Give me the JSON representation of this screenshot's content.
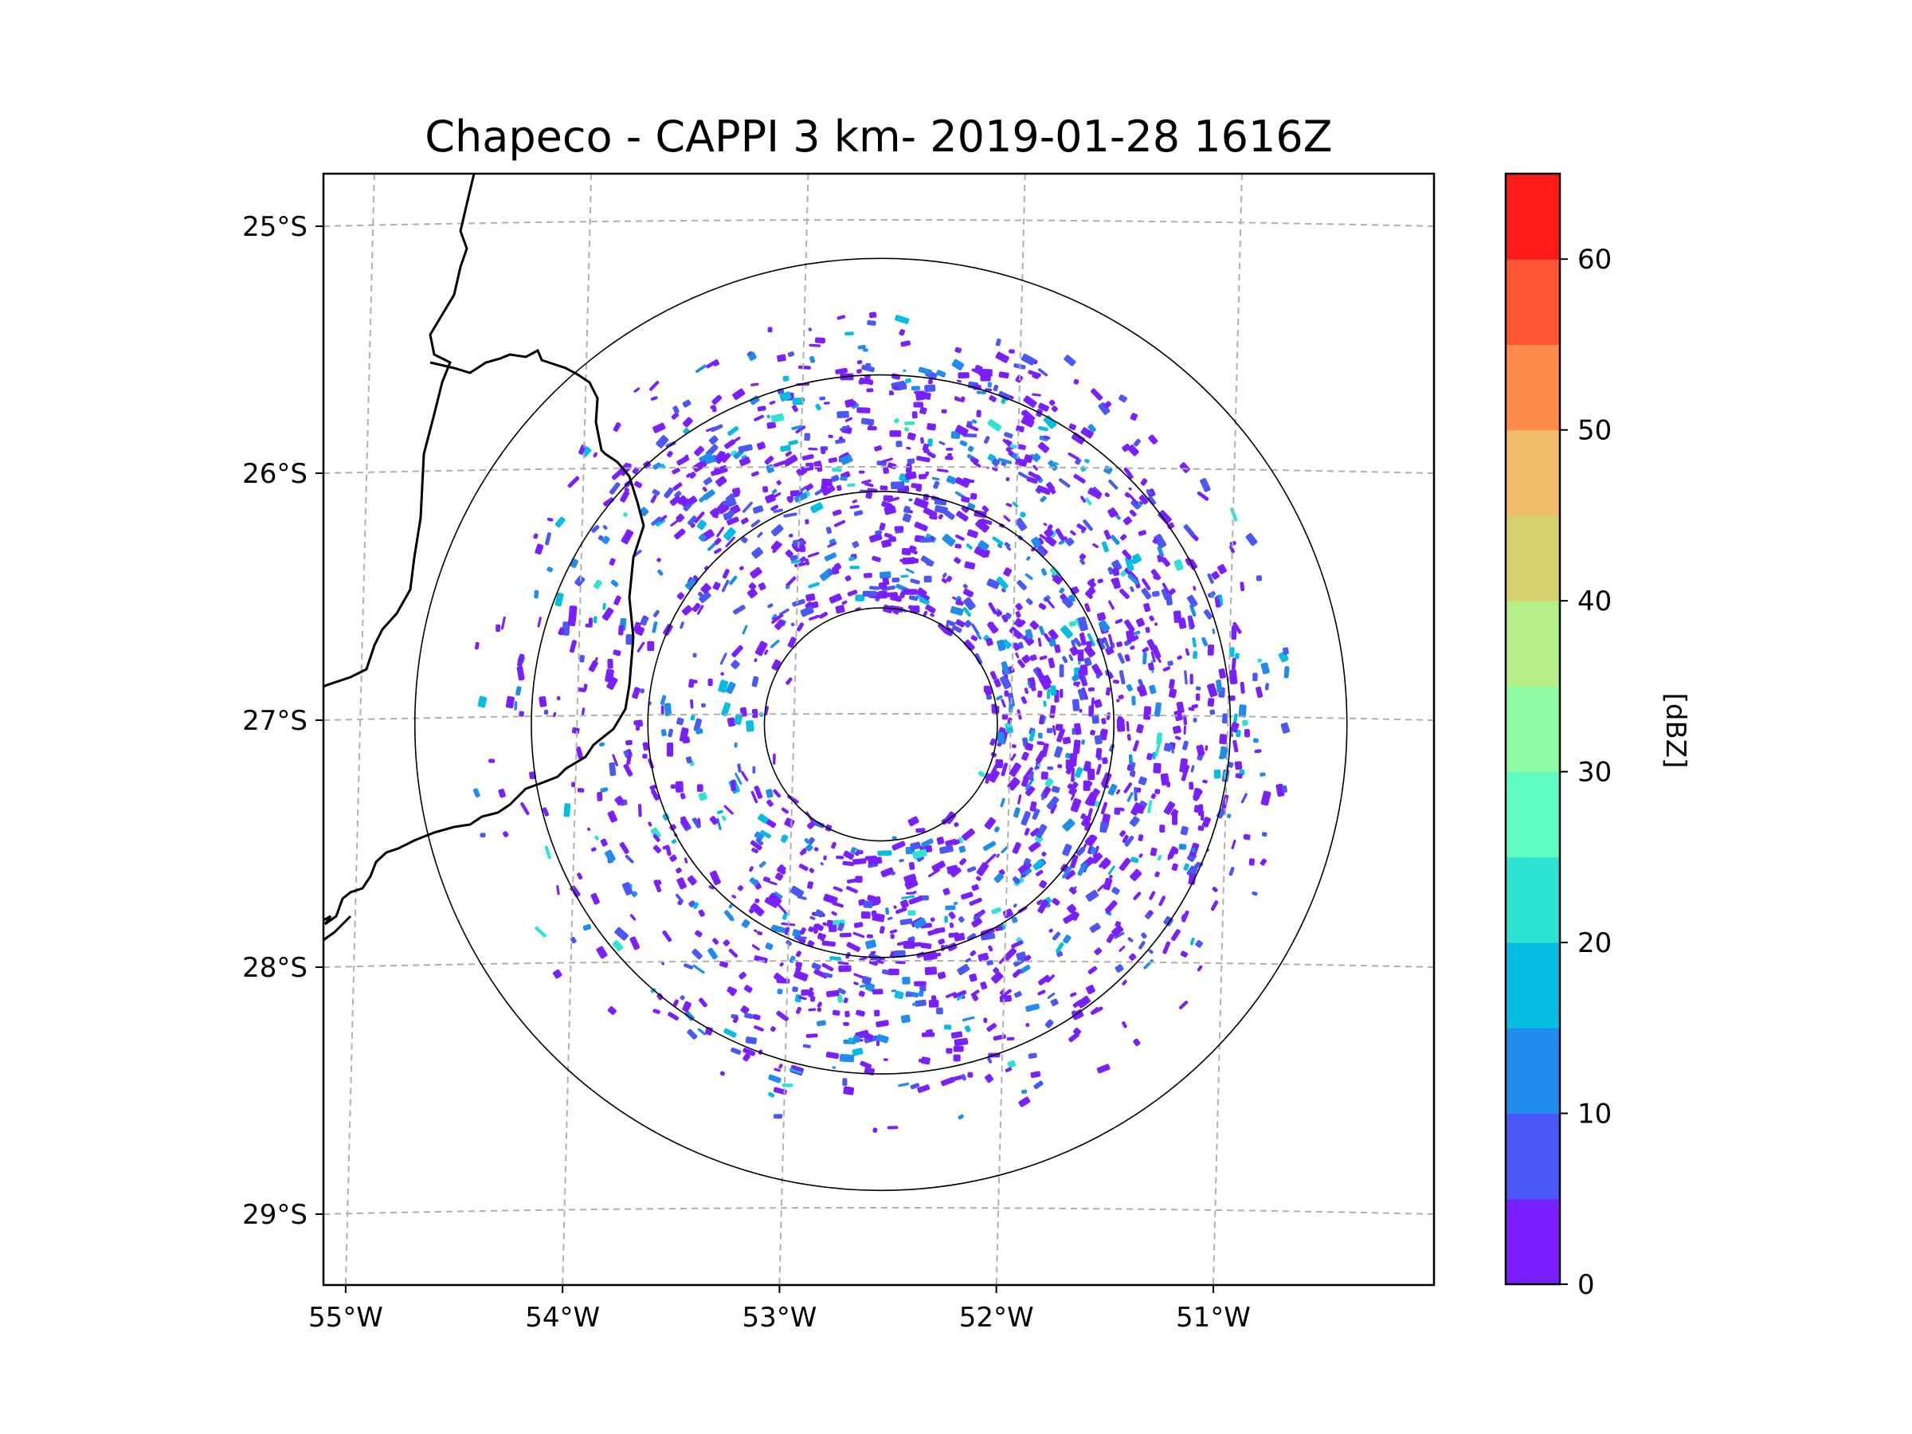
{
  "chart_data": {
    "type": "heatmap",
    "title": "Chapeco - CAPPI 3 km- 2019-01-28 1616Z",
    "xlabel": "",
    "ylabel": "",
    "x_ticks": [
      "55°W",
      "54°W",
      "53°W",
      "52°W",
      "51°W"
    ],
    "x_tick_values": [
      -55,
      -54,
      -53,
      -52,
      -51
    ],
    "y_ticks": [
      "25°S",
      "26°S",
      "27°S",
      "28°S",
      "29°S"
    ],
    "y_tick_values": [
      -25,
      -26,
      -27,
      -28,
      -29
    ],
    "xlim": [
      -55.17,
      -50.05
    ],
    "ylim": [
      -29.3,
      -24.8
    ],
    "grid": true,
    "radar_center": {
      "lon": -52.6,
      "lat": -27.03
    },
    "range_rings_km": [
      50,
      100,
      150,
      200
    ],
    "colorbar": {
      "label": "[dBZ]",
      "ticks": [
        "0",
        "10",
        "20",
        "30",
        "40",
        "50",
        "60"
      ],
      "tick_values": [
        0,
        10,
        20,
        30,
        40,
        50,
        60
      ],
      "range": [
        0,
        65
      ],
      "bounds": [
        0,
        5,
        10,
        15,
        20,
        25,
        30,
        35,
        40,
        45,
        50,
        55,
        60,
        65
      ],
      "colors": [
        "#7a1fff",
        "#4b57f6",
        "#1f8cee",
        "#05bde1",
        "#2ee3d3",
        "#5efcc0",
        "#8ffca4",
        "#b6ee87",
        "#d7d26d",
        "#f2bd6a",
        "#ff8c4a",
        "#ff5733",
        "#ff1a1a"
      ]
    },
    "echo_summary": {
      "min_dbz": 0,
      "max_dbz": 25,
      "dominant_range_dbz": [
        0,
        10
      ]
    }
  }
}
